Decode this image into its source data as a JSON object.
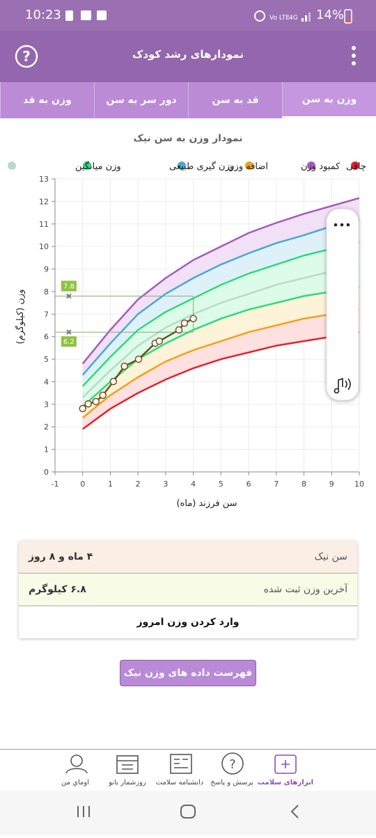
{
  "status_bar": {
    "time": "10:23",
    "battery": "14%"
  },
  "header": {
    "title": "نمودارهای رشد کودک",
    "help": "?"
  },
  "tabs": [
    "وزن به سن",
    "قد به سن",
    "دور سر به سن",
    "وزن به قد"
  ],
  "chart_data": {
    "type": "line",
    "title": "نمودار وزن به سن نیک",
    "x_label": "سن فرزند (ماه)",
    "y_label": "وزن (کیلوگرم)",
    "xlim": [
      -1,
      10
    ],
    "xticks": [
      -1,
      0,
      1,
      2,
      3,
      4,
      5,
      6,
      7,
      8,
      9,
      10
    ],
    "ylim": [
      0,
      13
    ],
    "yticks": [
      0,
      1,
      2,
      3,
      4,
      5,
      6,
      7,
      8,
      9,
      10,
      11,
      12,
      13
    ],
    "grid": true,
    "x": [
      0,
      1,
      2,
      3,
      4,
      5,
      6,
      7,
      8,
      9,
      10
    ],
    "series": [
      {
        "name": "چاقی",
        "color": "#a45cb8",
        "values": [
          4.8,
          6.3,
          7.65,
          8.6,
          9.4,
          10.0,
          10.6,
          11.05,
          11.45,
          11.8,
          12.15
        ]
      },
      {
        "name": "کمبود وزن",
        "color": "#f2a11a",
        "values": [
          2.4,
          3.4,
          4.2,
          4.9,
          5.4,
          5.8,
          6.2,
          6.5,
          6.8,
          7.0,
          7.2
        ]
      },
      {
        "name": "اضافه وزن",
        "color": "#4aa8cc",
        "values": [
          4.3,
          5.7,
          7.0,
          7.9,
          8.6,
          9.2,
          9.7,
          10.15,
          10.5,
          10.9,
          11.2
        ]
      },
      {
        "name": "وزن گیری طبیعی",
        "color": "#2fd97b",
        "values": [
          3.8,
          5.1,
          6.3,
          7.1,
          7.7,
          8.3,
          8.8,
          9.2,
          9.6,
          9.9,
          10.2
        ]
      },
      {
        "name": "وزن میانگین",
        "color": "#bcd9c8",
        "values": [
          3.3,
          4.5,
          5.6,
          6.4,
          7.0,
          7.5,
          7.9,
          8.3,
          8.6,
          8.9,
          9.2
        ]
      },
      {
        "color": "#2fd97b",
        "values": [
          2.9,
          4.0,
          5.0,
          5.7,
          6.3,
          6.8,
          7.2,
          7.5,
          7.8,
          8.0,
          8.2
        ]
      },
      {
        "color": "#e5202a",
        "values": [
          1.9,
          2.8,
          3.5,
          4.1,
          4.6,
          5.0,
          5.3,
          5.6,
          5.8,
          6.0,
          6.2
        ]
      }
    ],
    "child": {
      "color": "#7a4a1e",
      "x": [
        0,
        0.2,
        0.48,
        0.73,
        1.11,
        1.51,
        2.02,
        2.62,
        2.77,
        3.48,
        3.68,
        4.0
      ],
      "values": [
        2.81,
        3.02,
        3.12,
        3.4,
        4.01,
        4.69,
        5.0,
        5.71,
        5.8,
        6.3,
        6.6,
        6.8
      ]
    },
    "reference_values": [
      7.8,
      6.2
    ]
  },
  "info": {
    "rows": [
      [
        "سن نیک",
        "۴ ماه و ۸ روز"
      ],
      [
        "آخرین وزن ثبت شده",
        "۶.۸ کیلوگرم"
      ]
    ],
    "action": "وارد کردن وزن امروز"
  },
  "list_button": "فهرست داده های وزن نیک",
  "bottom_nav": [
    "ابزارهای سلامت",
    "پرسش و پاسخ",
    "دانشنامه سلامت",
    "روزشمار بانو",
    "اوماي من"
  ]
}
